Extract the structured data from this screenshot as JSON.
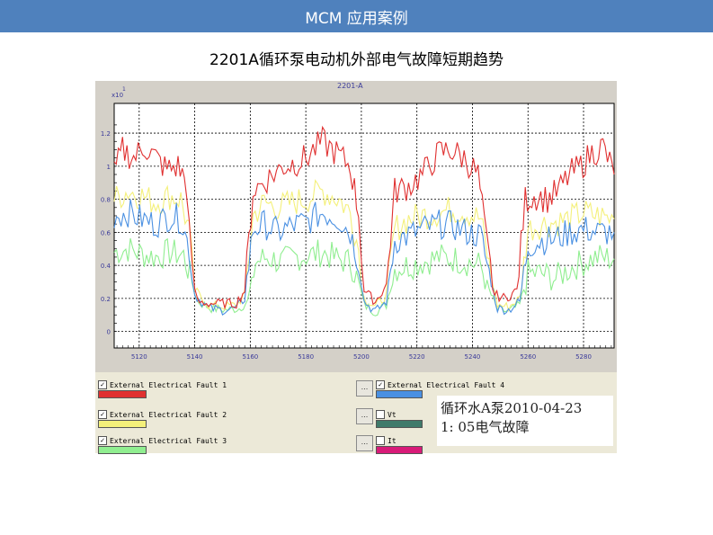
{
  "header": {
    "title": "MCM 应用案例"
  },
  "slide": {
    "title": "2201A循环泵电动机外部电气故障短期趋势"
  },
  "chart_data": {
    "type": "line",
    "title": "2201-A",
    "y_multiplier_label": "x10",
    "y_multiplier_exponent": "1",
    "xlim": [
      5111,
      5291
    ],
    "ylim": [
      -0.1,
      1.38
    ],
    "x_ticks": [
      5120,
      5140,
      5160,
      5180,
      5200,
      5220,
      5240,
      5260,
      5280
    ],
    "y_ticks": [
      0,
      0.2,
      0.4,
      0.6,
      0.8,
      1,
      1.2
    ],
    "y_tick_labels": [
      "0",
      "0.2",
      "0.4",
      "0.6",
      "0.8",
      "1",
      "1.2"
    ],
    "grid": true,
    "series_order": [
      "fault3",
      "fault2",
      "fault4",
      "fault1"
    ],
    "series": [
      {
        "key": "fault1",
        "name": "External Electrical Fault 1",
        "color": "#e03030",
        "anchors": [
          [
            5111,
            0.95
          ],
          [
            5114,
            1.1
          ],
          [
            5118,
            1.05
          ],
          [
            5122,
            1.12
          ],
          [
            5126,
            1.05
          ],
          [
            5130,
            0.98
          ],
          [
            5134,
            1.0
          ],
          [
            5137,
            0.9
          ],
          [
            5139,
            0.35
          ],
          [
            5141,
            0.18
          ],
          [
            5145,
            0.17
          ],
          [
            5150,
            0.17
          ],
          [
            5155,
            0.17
          ],
          [
            5158,
            0.25
          ],
          [
            5161,
            0.85
          ],
          [
            5166,
            0.92
          ],
          [
            5172,
            1.0
          ],
          [
            5176,
            1.02
          ],
          [
            5180,
            1.05
          ],
          [
            5186,
            1.15
          ],
          [
            5191,
            1.08
          ],
          [
            5196,
            1.0
          ],
          [
            5199,
            0.72
          ],
          [
            5201,
            0.25
          ],
          [
            5205,
            0.18
          ],
          [
            5209,
            0.28
          ],
          [
            5212,
            0.85
          ],
          [
            5217,
            0.88
          ],
          [
            5222,
            0.95
          ],
          [
            5228,
            1.08
          ],
          [
            5232,
            1.1
          ],
          [
            5237,
            1.05
          ],
          [
            5242,
            0.95
          ],
          [
            5245,
            0.55
          ],
          [
            5248,
            0.22
          ],
          [
            5252,
            0.2
          ],
          [
            5256,
            0.25
          ],
          [
            5259,
            0.8
          ],
          [
            5263,
            0.82
          ],
          [
            5267,
            0.8
          ],
          [
            5271,
            0.85
          ],
          [
            5275,
            0.95
          ],
          [
            5279,
            1.0
          ],
          [
            5283,
            1.08
          ],
          [
            5287,
            1.12
          ],
          [
            5291,
            0.95
          ]
        ]
      },
      {
        "key": "fault2",
        "name": "External Electrical Fault 2",
        "color": "#f4f07a",
        "anchors": [
          [
            5111,
            0.8
          ],
          [
            5116,
            0.85
          ],
          [
            5121,
            0.82
          ],
          [
            5126,
            0.78
          ],
          [
            5131,
            0.82
          ],
          [
            5135,
            0.8
          ],
          [
            5138,
            0.6
          ],
          [
            5140,
            0.25
          ],
          [
            5145,
            0.16
          ],
          [
            5150,
            0.15
          ],
          [
            5155,
            0.16
          ],
          [
            5158,
            0.22
          ],
          [
            5161,
            0.7
          ],
          [
            5165,
            0.78
          ],
          [
            5170,
            0.75
          ],
          [
            5175,
            0.78
          ],
          [
            5180,
            0.8
          ],
          [
            5186,
            0.85
          ],
          [
            5192,
            0.8
          ],
          [
            5196,
            0.72
          ],
          [
            5199,
            0.5
          ],
          [
            5201,
            0.2
          ],
          [
            5205,
            0.15
          ],
          [
            5209,
            0.22
          ],
          [
            5212,
            0.62
          ],
          [
            5217,
            0.68
          ],
          [
            5222,
            0.7
          ],
          [
            5228,
            0.72
          ],
          [
            5233,
            0.74
          ],
          [
            5238,
            0.72
          ],
          [
            5243,
            0.68
          ],
          [
            5246,
            0.4
          ],
          [
            5249,
            0.16
          ],
          [
            5253,
            0.15
          ],
          [
            5257,
            0.2
          ],
          [
            5260,
            0.62
          ],
          [
            5265,
            0.65
          ],
          [
            5270,
            0.66
          ],
          [
            5275,
            0.68
          ],
          [
            5280,
            0.72
          ],
          [
            5285,
            0.7
          ],
          [
            5291,
            0.68
          ]
        ]
      },
      {
        "key": "fault3",
        "name": "External Electrical Fault 3",
        "color": "#90ee90",
        "anchors": [
          [
            5111,
            0.48
          ],
          [
            5116,
            0.5
          ],
          [
            5121,
            0.47
          ],
          [
            5126,
            0.45
          ],
          [
            5131,
            0.48
          ],
          [
            5136,
            0.46
          ],
          [
            5139,
            0.3
          ],
          [
            5141,
            0.18
          ],
          [
            5146,
            0.14
          ],
          [
            5151,
            0.13
          ],
          [
            5156,
            0.14
          ],
          [
            5159,
            0.18
          ],
          [
            5162,
            0.42
          ],
          [
            5166,
            0.45
          ],
          [
            5171,
            0.42
          ],
          [
            5176,
            0.45
          ],
          [
            5181,
            0.46
          ],
          [
            5186,
            0.48
          ],
          [
            5191,
            0.44
          ],
          [
            5196,
            0.42
          ],
          [
            5199,
            0.3
          ],
          [
            5201,
            0.16
          ],
          [
            5205,
            0.12
          ],
          [
            5209,
            0.16
          ],
          [
            5212,
            0.38
          ],
          [
            5217,
            0.4
          ],
          [
            5222,
            0.42
          ],
          [
            5228,
            0.45
          ],
          [
            5233,
            0.44
          ],
          [
            5238,
            0.42
          ],
          [
            5243,
            0.4
          ],
          [
            5246,
            0.25
          ],
          [
            5249,
            0.13
          ],
          [
            5253,
            0.12
          ],
          [
            5257,
            0.16
          ],
          [
            5260,
            0.35
          ],
          [
            5265,
            0.35
          ],
          [
            5270,
            0.32
          ],
          [
            5275,
            0.38
          ],
          [
            5280,
            0.42
          ],
          [
            5285,
            0.45
          ],
          [
            5291,
            0.44
          ]
        ]
      },
      {
        "key": "fault4",
        "name": "External Electrical Fault 4",
        "color": "#4a90e2",
        "anchors": [
          [
            5111,
            0.7
          ],
          [
            5116,
            0.72
          ],
          [
            5121,
            0.68
          ],
          [
            5126,
            0.65
          ],
          [
            5131,
            0.7
          ],
          [
            5135,
            0.68
          ],
          [
            5138,
            0.5
          ],
          [
            5140,
            0.22
          ],
          [
            5145,
            0.14
          ],
          [
            5150,
            0.13
          ],
          [
            5155,
            0.14
          ],
          [
            5158,
            0.2
          ],
          [
            5161,
            0.62
          ],
          [
            5165,
            0.65
          ],
          [
            5170,
            0.6
          ],
          [
            5175,
            0.64
          ],
          [
            5180,
            0.66
          ],
          [
            5186,
            0.72
          ],
          [
            5192,
            0.68
          ],
          [
            5196,
            0.6
          ],
          [
            5199,
            0.42
          ],
          [
            5201,
            0.18
          ],
          [
            5205,
            0.12
          ],
          [
            5209,
            0.18
          ],
          [
            5212,
            0.55
          ],
          [
            5217,
            0.58
          ],
          [
            5222,
            0.62
          ],
          [
            5228,
            0.65
          ],
          [
            5233,
            0.64
          ],
          [
            5238,
            0.6
          ],
          [
            5243,
            0.58
          ],
          [
            5246,
            0.35
          ],
          [
            5249,
            0.14
          ],
          [
            5253,
            0.13
          ],
          [
            5257,
            0.18
          ],
          [
            5260,
            0.52
          ],
          [
            5265,
            0.55
          ],
          [
            5270,
            0.56
          ],
          [
            5275,
            0.6
          ],
          [
            5280,
            0.62
          ],
          [
            5285,
            0.6
          ],
          [
            5291,
            0.6
          ]
        ]
      }
    ]
  },
  "legend": {
    "left": [
      {
        "label": "External Electrical Fault 1",
        "checked": true,
        "color": "#e03030"
      },
      {
        "label": "External Electrical Fault 2",
        "checked": true,
        "color": "#f4f07a"
      },
      {
        "label": "External Electrical Fault 3",
        "checked": true,
        "color": "#90ee90"
      }
    ],
    "right": [
      {
        "label": "External Electrical Fault 4",
        "checked": true,
        "color": "#4a90e2"
      },
      {
        "label": "Vt",
        "checked": false,
        "color": "#3f7a6a"
      },
      {
        "label": "It",
        "checked": false,
        "color": "#d81b78"
      }
    ],
    "button_label": "..."
  },
  "note": {
    "line1": "循环水A泵2010-04-23",
    "line2": "1: 05电气故障"
  }
}
